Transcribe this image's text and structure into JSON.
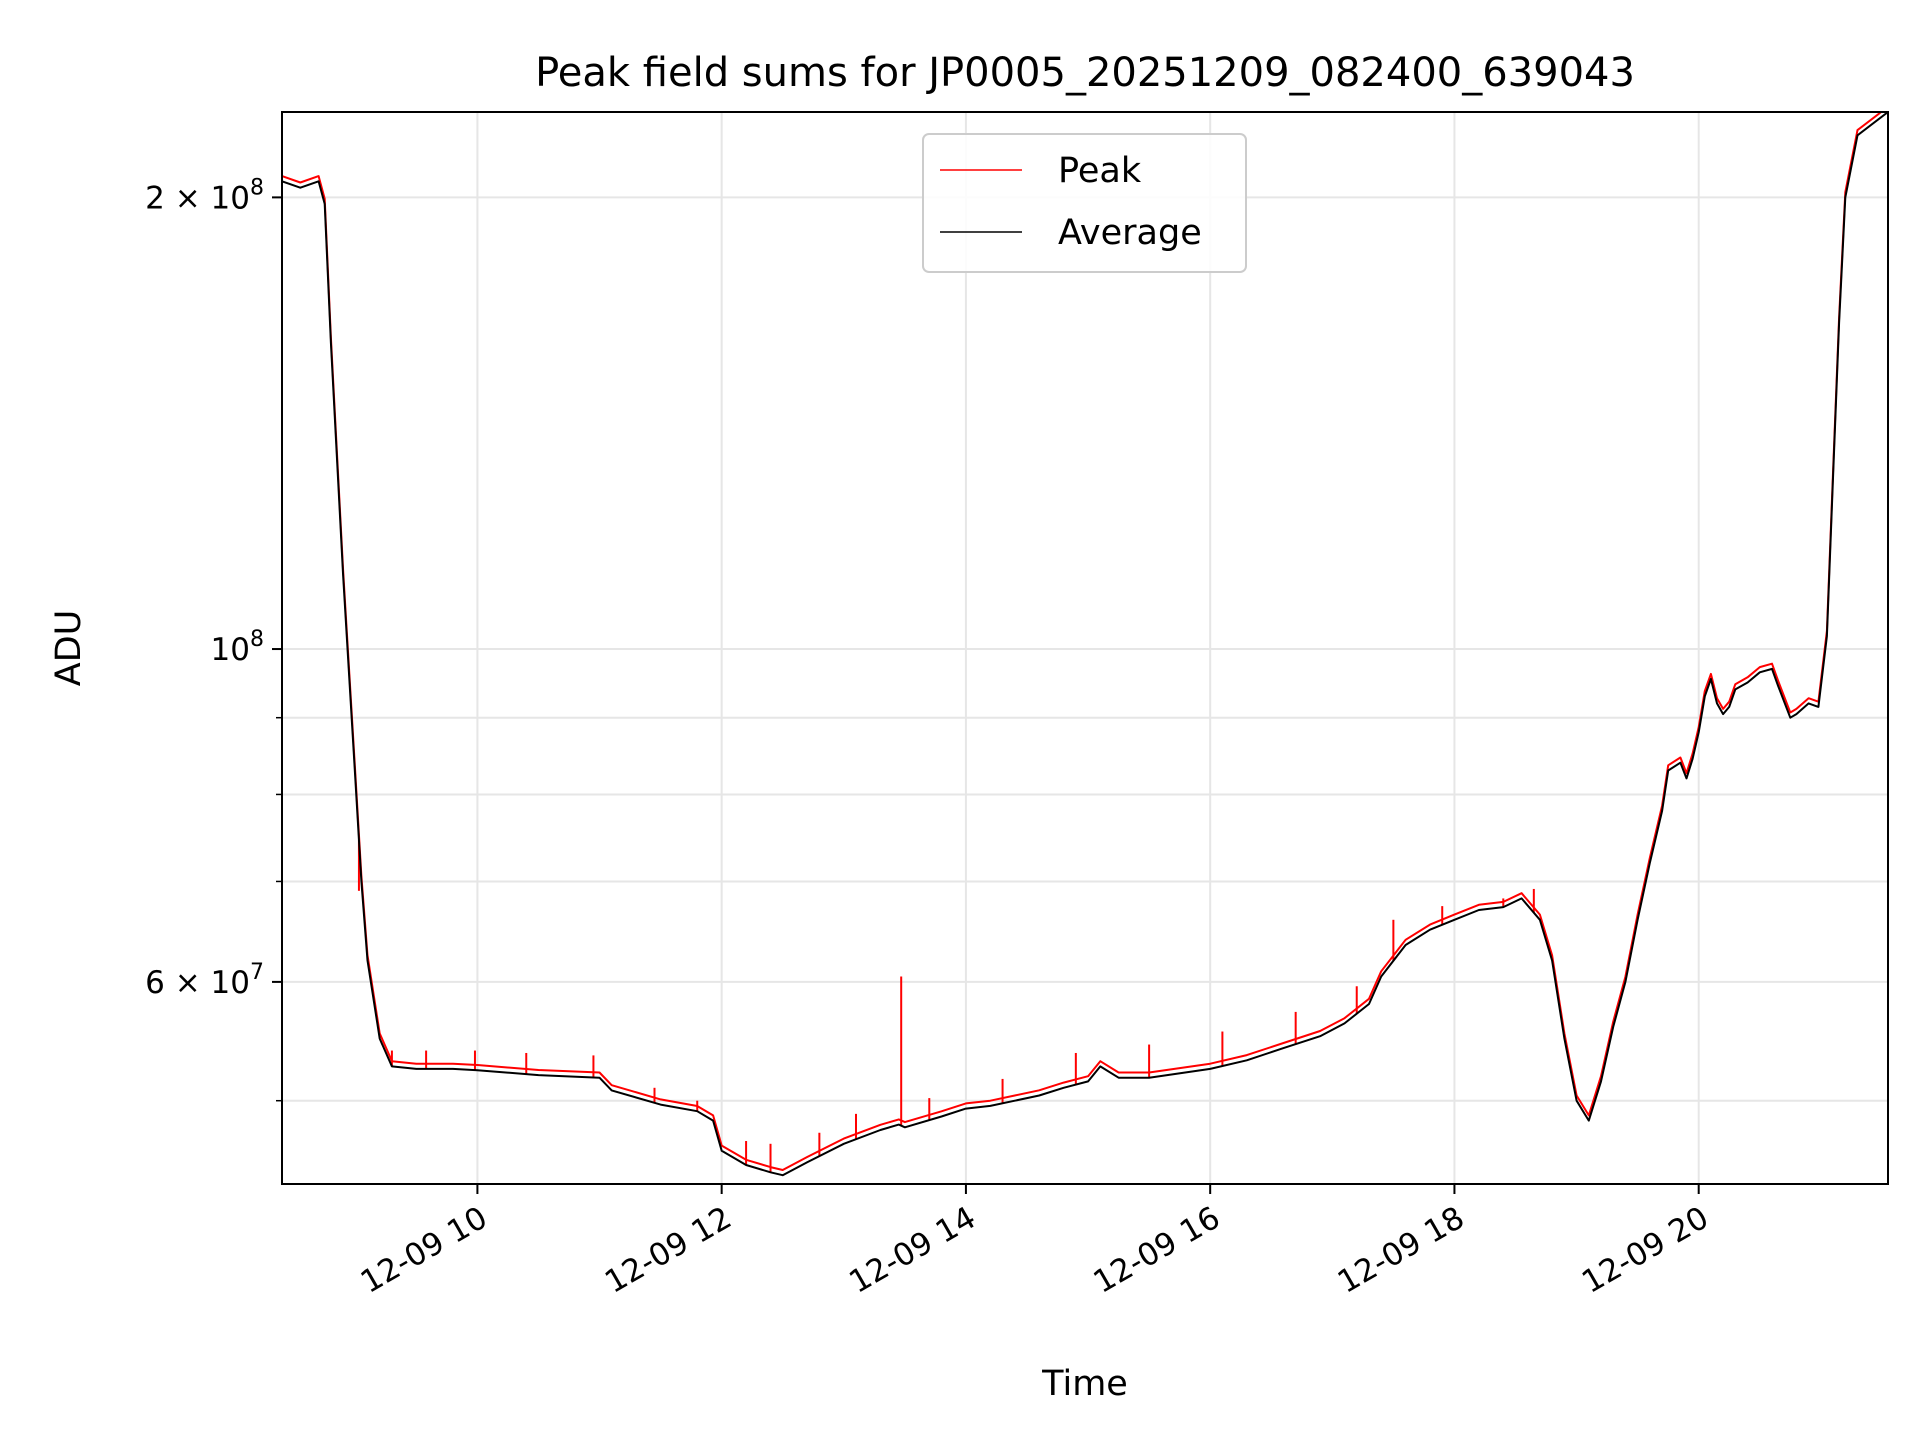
{
  "chart_data": {
    "type": "line",
    "title": "Peak field sums for JP0005_20251209_082400_639043",
    "xlabel": "Time",
    "ylabel": "ADU",
    "y_scale": "log",
    "grid": true,
    "legend_position": "top-center",
    "x_unit": "hours (2025-12-09, local time)",
    "xlim": [
      8.4,
      21.55
    ],
    "ylim": [
      44000000,
      228000000
    ],
    "x_ticks": [
      {
        "value": 10,
        "label": "12-09 10"
      },
      {
        "value": 12,
        "label": "12-09 12"
      },
      {
        "value": 14,
        "label": "12-09 14"
      },
      {
        "value": 16,
        "label": "12-09 16"
      },
      {
        "value": 18,
        "label": "12-09 18"
      },
      {
        "value": 20,
        "label": "12-09 20"
      }
    ],
    "y_major_ticks": [
      {
        "value": 60000000,
        "mantissa": "6",
        "exp": "7"
      },
      {
        "value": 100000000,
        "mantissa": "",
        "exp": "8"
      },
      {
        "value": 200000000,
        "mantissa": "2",
        "exp": "8"
      }
    ],
    "y_minor_ticks": [
      50000000,
      70000000,
      80000000,
      90000000
    ],
    "colors": {
      "peak": "#ff0000",
      "average": "#000000",
      "grid": "#e6e6e6"
    },
    "series": [
      {
        "name": "Peak",
        "color": "#ff0000",
        "spike_points": [
          [
            9.03,
            69000000
          ],
          [
            9.3,
            54000000
          ],
          [
            9.58,
            54000000
          ],
          [
            9.98,
            54000000
          ],
          [
            10.4,
            53800000
          ],
          [
            10.95,
            53600000
          ],
          [
            11.45,
            51000000
          ],
          [
            11.8,
            50000000
          ],
          [
            12.2,
            47000000
          ],
          [
            12.4,
            46800000
          ],
          [
            12.8,
            47600000
          ],
          [
            13.1,
            49000000
          ],
          [
            13.47,
            60500000
          ],
          [
            13.7,
            50200000
          ],
          [
            14.3,
            51700000
          ],
          [
            14.9,
            53800000
          ],
          [
            15.5,
            54500000
          ],
          [
            16.1,
            55600000
          ],
          [
            16.7,
            57300000
          ],
          [
            17.2,
            59600000
          ],
          [
            17.5,
            66000000
          ],
          [
            17.9,
            67400000
          ],
          [
            18.4,
            68200000
          ],
          [
            18.65,
            69200000
          ]
        ]
      },
      {
        "name": "Average",
        "color": "#000000",
        "x": [
          8.4,
          8.55,
          8.7,
          8.75,
          8.8,
          8.9,
          9.0,
          9.05,
          9.1,
          9.2,
          9.3,
          9.5,
          9.8,
          10.0,
          10.5,
          11.0,
          11.1,
          11.5,
          11.8,
          11.93,
          12.0,
          12.2,
          12.4,
          12.5,
          12.7,
          13.0,
          13.3,
          13.45,
          13.5,
          13.8,
          14.0,
          14.2,
          14.4,
          14.6,
          14.8,
          15.0,
          15.1,
          15.25,
          15.5,
          16.0,
          16.3,
          16.6,
          16.9,
          17.1,
          17.3,
          17.4,
          17.6,
          17.8,
          18.0,
          18.2,
          18.4,
          18.55,
          18.7,
          18.8,
          18.9,
          19.0,
          19.1,
          19.2,
          19.3,
          19.4,
          19.5,
          19.6,
          19.7,
          19.75,
          19.85,
          19.9,
          19.95,
          20.0,
          20.05,
          20.1,
          20.15,
          20.2,
          20.25,
          20.3,
          20.4,
          20.5,
          20.6,
          20.65,
          20.75,
          20.8,
          20.9,
          20.98,
          21.05,
          21.1,
          21.15,
          21.2,
          21.3,
          21.55
        ],
        "y": [
          205000000,
          203000000,
          205000000,
          198000000,
          160000000,
          112000000,
          82000000,
          70000000,
          62000000,
          55000000,
          52700000,
          52500000,
          52500000,
          52400000,
          52000000,
          51800000,
          50800000,
          49700000,
          49200000,
          48500000,
          46300000,
          45300000,
          44800000,
          44600000,
          45500000,
          46800000,
          47800000,
          48200000,
          48000000,
          48800000,
          49400000,
          49600000,
          50000000,
          50400000,
          51000000,
          51500000,
          52700000,
          51800000,
          51800000,
          52500000,
          53200000,
          54200000,
          55200000,
          56300000,
          58000000,
          60500000,
          63500000,
          65000000,
          66000000,
          67000000,
          67300000,
          68200000,
          66000000,
          62000000,
          55000000,
          50000000,
          48500000,
          51500000,
          56000000,
          60000000,
          66000000,
          72000000,
          78000000,
          83000000,
          84000000,
          82000000,
          84500000,
          88000000,
          93000000,
          95500000,
          92000000,
          90500000,
          91500000,
          94000000,
          95000000,
          96500000,
          97000000,
          94500000,
          90000000,
          90500000,
          92000000,
          91500000,
          102000000,
          130000000,
          165000000,
          200000000,
          220000000,
          228000000
        ]
      }
    ]
  }
}
